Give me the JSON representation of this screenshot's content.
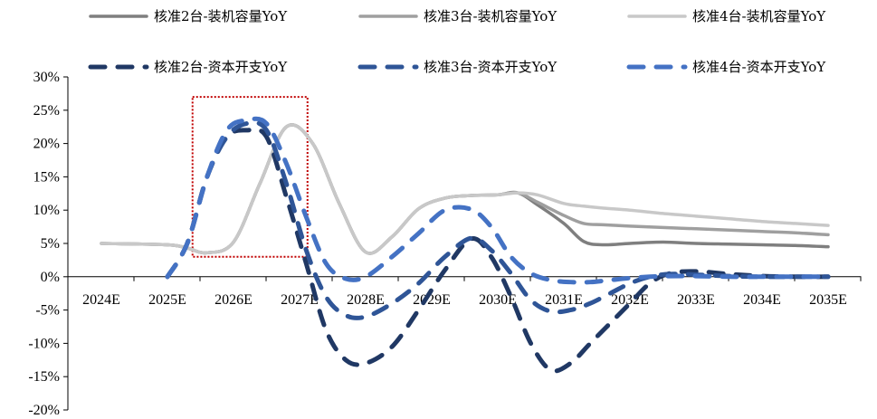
{
  "chart_data": {
    "type": "line",
    "title": "",
    "xlabel": "",
    "ylabel": "",
    "ylim": [
      -20,
      30
    ],
    "y_ticks": [
      30,
      25,
      20,
      15,
      10,
      5,
      0,
      -5,
      -10,
      -15,
      -20
    ],
    "y_tick_labels": [
      "30%",
      "25%",
      "20%",
      "15%",
      "10%",
      "5%",
      "0%",
      "-5%",
      "-10%",
      "-15%",
      "-20%"
    ],
    "categories": [
      "2024E",
      "2025E",
      "2026E",
      "2027E",
      "2028E",
      "2029E",
      "2030E",
      "2031E",
      "2032E",
      "2033E",
      "2034E",
      "2035E"
    ],
    "grid": false,
    "legend_position": "top",
    "highlight_box": {
      "x_range": [
        "2026E",
        "2027E"
      ],
      "y_range": [
        3,
        27
      ],
      "color": "#c00000"
    },
    "series": [
      {
        "name": "核准2台-装机容量YoY",
        "color": "#7f7f7f",
        "dash": false,
        "x": [
          0,
          1,
          1.3,
          1.6,
          2,
          2.4,
          2.8,
          3.2,
          3.6,
          4,
          4.4,
          4.8,
          5.2,
          5.6,
          6,
          6.3,
          6.6,
          7,
          7.3,
          7.6,
          8,
          8.5,
          9,
          9.5,
          10,
          10.5,
          11
        ],
        "values": [
          5.0,
          4.8,
          4.3,
          3.6,
          5.2,
          14,
          22.5,
          20,
          11,
          3.7,
          6,
          10.2,
          11.8,
          12.2,
          12.3,
          12.6,
          10.8,
          8,
          5.3,
          4.8,
          5.0,
          5.2,
          5.0,
          4.9,
          4.8,
          4.7,
          4.5
        ]
      },
      {
        "name": "核准3台-装机容量YoY",
        "color": "#9f9f9f",
        "dash": false,
        "x": [
          0,
          1,
          1.3,
          1.6,
          2,
          2.4,
          2.8,
          3.2,
          3.6,
          4,
          4.4,
          4.8,
          5.2,
          5.6,
          6,
          6.3,
          6.6,
          7,
          7.3,
          7.6,
          8,
          8.5,
          9,
          9.5,
          10,
          10.5,
          11
        ],
        "values": [
          5.0,
          4.8,
          4.3,
          3.6,
          5.2,
          14,
          22.5,
          20,
          11,
          3.7,
          6,
          10.2,
          11.8,
          12.2,
          12.3,
          12.6,
          11.2,
          9.2,
          8.0,
          7.8,
          7.6,
          7.4,
          7.2,
          7.0,
          6.8,
          6.6,
          6.3
        ]
      },
      {
        "name": "核准4台-装机容量YoY",
        "color": "#c8c8c8",
        "dash": false,
        "x": [
          0,
          1,
          1.3,
          1.6,
          2,
          2.4,
          2.8,
          3.2,
          3.6,
          4,
          4.4,
          4.8,
          5.2,
          5.6,
          6,
          6.3,
          6.6,
          7,
          7.3,
          7.6,
          8,
          8.5,
          9,
          9.5,
          10,
          10.5,
          11
        ],
        "values": [
          5.0,
          4.8,
          4.3,
          3.6,
          5.2,
          14,
          22.5,
          20,
          11,
          3.7,
          6,
          10.2,
          11.8,
          12.2,
          12.3,
          12.6,
          12.3,
          11.0,
          10.6,
          10.3,
          10.0,
          9.5,
          9.1,
          8.7,
          8.3,
          8.0,
          7.7
        ]
      },
      {
        "name": "核准2台-资本开支YoY",
        "color": "#203864",
        "dash": true,
        "x": [
          1,
          1.3,
          1.6,
          1.9,
          2.2,
          2.5,
          2.8,
          3.1,
          3.4,
          3.7,
          4,
          4.4,
          4.8,
          5.2,
          5.6,
          5.9,
          6.2,
          6.5,
          6.8,
          7.1,
          7.4,
          7.7,
          8,
          8.3,
          8.6,
          9,
          9.5,
          10,
          10.5,
          11
        ],
        "values": [
          0,
          5,
          15,
          21,
          22,
          21,
          12,
          2,
          -8,
          -12.5,
          -13,
          -10.5,
          -5,
          1,
          5.7,
          3,
          -3,
          -10,
          -14,
          -13,
          -10,
          -7,
          -4,
          -1,
          0.5,
          0.8,
          0.4,
          0.1,
          0.0,
          0.0
        ]
      },
      {
        "name": "核准3台-资本开支YoY",
        "color": "#2f5597",
        "dash": true,
        "x": [
          1,
          1.3,
          1.6,
          1.9,
          2.2,
          2.5,
          2.8,
          3.1,
          3.4,
          3.7,
          4,
          4.4,
          4.8,
          5.2,
          5.6,
          5.9,
          6.2,
          6.5,
          6.8,
          7.1,
          7.4,
          7.7,
          8,
          8.3,
          8.6,
          9,
          9.5,
          10,
          10.5,
          11
        ],
        "values": [
          0,
          5,
          15,
          21,
          23,
          22,
          14,
          4,
          -3,
          -5.8,
          -6,
          -4,
          -1,
          3,
          5.8,
          4,
          0.5,
          -3.5,
          -5.2,
          -5,
          -4,
          -2.5,
          -1,
          0,
          0.4,
          0.3,
          0.1,
          0.0,
          0.0,
          0.0
        ]
      },
      {
        "name": "核准4台-资本开支YoY",
        "color": "#4472c4",
        "dash": true,
        "x": [
          1,
          1.3,
          1.6,
          1.9,
          2.2,
          2.5,
          2.8,
          3.1,
          3.4,
          3.7,
          4,
          4.4,
          4.8,
          5.2,
          5.6,
          5.9,
          6.2,
          6.5,
          6.8,
          7.1,
          7.4,
          7.7,
          8,
          8.3,
          8.6,
          9,
          9.5,
          10,
          10.5,
          11
        ],
        "values": [
          0,
          5,
          15,
          22,
          23.5,
          23,
          17,
          9,
          2,
          -0.3,
          0,
          3,
          6.5,
          10,
          10.1,
          7.5,
          3,
          0.5,
          -0.5,
          -0.8,
          -0.8,
          -0.5,
          -0.2,
          0,
          0.1,
          0.1,
          0.0,
          0.0,
          0.0,
          0.0
        ]
      }
    ]
  }
}
